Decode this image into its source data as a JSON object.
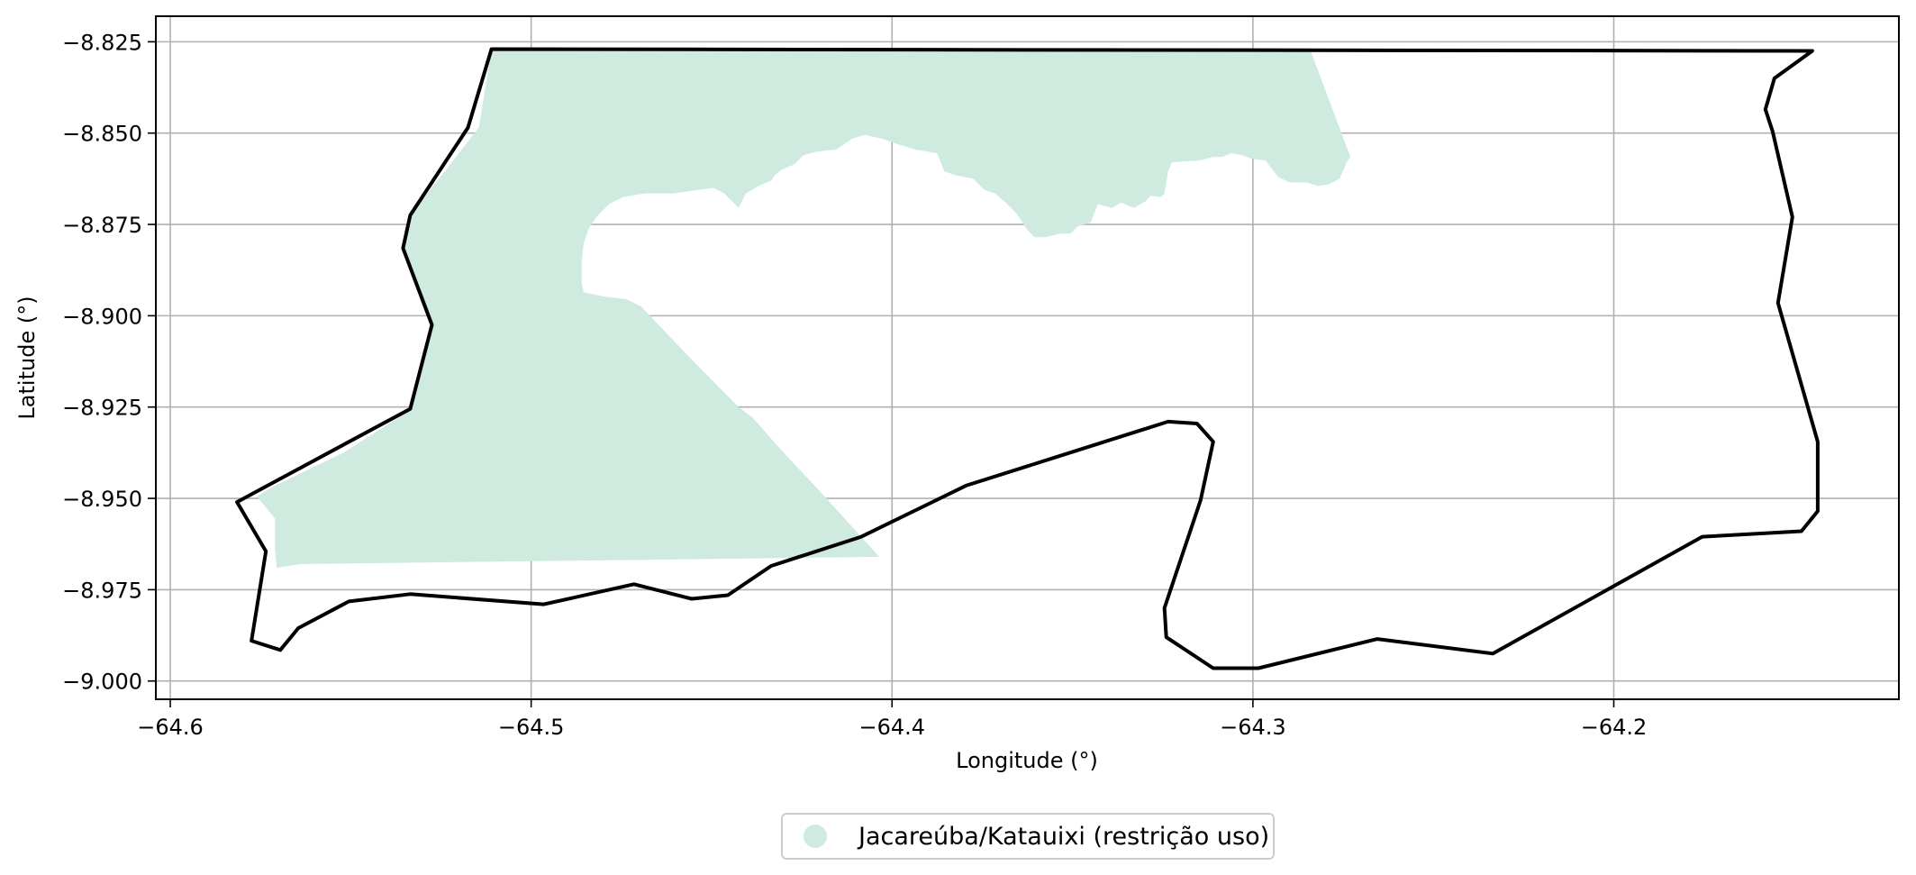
{
  "chart_data": {
    "type": "map",
    "xlabel": "Longitude (°)",
    "ylabel": "Latitude (°)",
    "xlim": [
      -64.604,
      -64.121
    ],
    "ylim": [
      -9.005,
      -8.818
    ],
    "grid": true,
    "x_ticks": [
      {
        "value": -64.6,
        "label": "−64.6"
      },
      {
        "value": -64.5,
        "label": "−64.5"
      },
      {
        "value": -64.4,
        "label": "−64.4"
      },
      {
        "value": -64.3,
        "label": "−64.3"
      },
      {
        "value": -64.2,
        "label": "−64.2"
      }
    ],
    "y_ticks": [
      {
        "value": -8.825,
        "label": "−8.825"
      },
      {
        "value": -8.85,
        "label": "−8.850"
      },
      {
        "value": -8.875,
        "label": "−8.875"
      },
      {
        "value": -8.9,
        "label": "−8.900"
      },
      {
        "value": -8.925,
        "label": "−8.925"
      },
      {
        "value": -8.95,
        "label": "−8.950"
      },
      {
        "value": -8.975,
        "label": "−8.975"
      },
      {
        "value": -9.0,
        "label": "−9.000"
      }
    ],
    "legend": {
      "placement": "bottom-center",
      "entries": [
        {
          "label": "Jacareúba/Katauixi (restrição uso)",
          "color": "#cfebdf"
        }
      ]
    },
    "layers": [
      {
        "kind": "filled-area",
        "legend_label": "Jacareúba/Katauixi (restrição uso)",
        "color": "#cfebdf",
        "coordinates": [
          [
            -64.511,
            -8.827
          ],
          [
            -64.284,
            -8.8275
          ],
          [
            -64.273,
            -8.8565
          ],
          [
            -64.274,
            -8.858
          ],
          [
            -64.276,
            -8.8625
          ],
          [
            -64.279,
            -8.864
          ],
          [
            -64.282,
            -8.8645
          ],
          [
            -64.285,
            -8.8635
          ],
          [
            -64.29,
            -8.8635
          ],
          [
            -64.293,
            -8.862
          ],
          [
            -64.2965,
            -8.8575
          ],
          [
            -64.3005,
            -8.857
          ],
          [
            -64.303,
            -8.856
          ],
          [
            -64.306,
            -8.8555
          ],
          [
            -64.3085,
            -8.8565
          ],
          [
            -64.311,
            -8.8565
          ],
          [
            -64.315,
            -8.8575
          ],
          [
            -64.3225,
            -8.858
          ],
          [
            -64.3235,
            -8.8605
          ],
          [
            -64.3245,
            -8.8665
          ],
          [
            -64.3255,
            -8.8675
          ],
          [
            -64.3285,
            -8.8672
          ],
          [
            -64.3295,
            -8.8685
          ],
          [
            -64.333,
            -8.8705
          ],
          [
            -64.3365,
            -8.869
          ],
          [
            -64.339,
            -8.8705
          ],
          [
            -64.343,
            -8.8695
          ],
          [
            -64.345,
            -8.8745
          ],
          [
            -64.3485,
            -8.8755
          ],
          [
            -64.3505,
            -8.8775
          ],
          [
            -64.3535,
            -8.8775
          ],
          [
            -64.3575,
            -8.8785
          ],
          [
            -64.3605,
            -8.8785
          ],
          [
            -64.3625,
            -8.8765
          ],
          [
            -64.3655,
            -8.872
          ],
          [
            -64.3685,
            -8.869
          ],
          [
            -64.3715,
            -8.8665
          ],
          [
            -64.3745,
            -8.8655
          ],
          [
            -64.3775,
            -8.8625
          ],
          [
            -64.3825,
            -8.8615
          ],
          [
            -64.3855,
            -8.8605
          ],
          [
            -64.3875,
            -8.8555
          ],
          [
            -64.3935,
            -8.8545
          ],
          [
            -64.3985,
            -8.853
          ],
          [
            -64.403,
            -8.8515
          ],
          [
            -64.4075,
            -8.8505
          ],
          [
            -64.411,
            -8.8515
          ],
          [
            -64.4155,
            -8.8545
          ],
          [
            -64.4205,
            -8.855
          ],
          [
            -64.4245,
            -8.856
          ],
          [
            -64.427,
            -8.8585
          ],
          [
            -64.4305,
            -8.86
          ],
          [
            -64.4325,
            -8.8615
          ],
          [
            -64.4335,
            -8.863
          ],
          [
            -64.437,
            -8.8645
          ],
          [
            -64.4405,
            -8.8665
          ],
          [
            -64.4425,
            -8.8705
          ],
          [
            -64.4465,
            -8.8665
          ],
          [
            -64.4495,
            -8.865
          ],
          [
            -64.4555,
            -8.8658
          ],
          [
            -64.4605,
            -8.8665
          ],
          [
            -64.4685,
            -8.8665
          ],
          [
            -64.4745,
            -8.8675
          ],
          [
            -64.4785,
            -8.8695
          ],
          [
            -64.4815,
            -8.8725
          ],
          [
            -64.484,
            -8.876
          ],
          [
            -64.4855,
            -8.8805
          ],
          [
            -64.486,
            -8.8855
          ],
          [
            -64.486,
            -8.891
          ],
          [
            -64.4855,
            -8.8935
          ],
          [
            -64.4835,
            -8.894
          ],
          [
            -64.4795,
            -8.8948
          ],
          [
            -64.4735,
            -8.8955
          ],
          [
            -64.4695,
            -8.8975
          ],
          [
            -64.4555,
            -8.912
          ],
          [
            -64.4425,
            -8.925
          ],
          [
            -64.4385,
            -8.928
          ],
          [
            -64.4305,
            -8.937
          ],
          [
            -64.4205,
            -8.9475
          ],
          [
            -64.4035,
            -8.966
          ],
          [
            -64.3945,
            -8.9735
          ],
          [
            -64.388,
            -8.9695
          ],
          [
            -64.564,
            -8.968
          ],
          [
            -64.5705,
            -8.969
          ],
          [
            -64.571,
            -8.964
          ],
          [
            -64.571,
            -8.9555
          ],
          [
            -64.576,
            -8.9495
          ],
          [
            -64.572,
            -8.947
          ],
          [
            -64.552,
            -8.9375
          ],
          [
            -64.533,
            -8.9255
          ],
          [
            -64.5275,
            -8.9025
          ],
          [
            -64.5355,
            -8.8815
          ],
          [
            -64.5335,
            -8.8725
          ],
          [
            -64.5145,
            -8.8485
          ]
        ]
      },
      {
        "kind": "outline",
        "color": "#000000",
        "coordinates": [
          [
            -64.511,
            -8.827
          ],
          [
            -64.145,
            -8.8275
          ],
          [
            -64.1555,
            -8.835
          ],
          [
            -64.158,
            -8.8435
          ],
          [
            -64.156,
            -8.8495
          ],
          [
            -64.1505,
            -8.873
          ],
          [
            -64.1545,
            -8.8965
          ],
          [
            -64.1435,
            -8.9345
          ],
          [
            -64.1435,
            -8.9535
          ],
          [
            -64.148,
            -8.959
          ],
          [
            -64.1755,
            -8.9605
          ],
          [
            -64.2335,
            -8.9925
          ],
          [
            -64.2655,
            -8.9885
          ],
          [
            -64.2985,
            -8.9965
          ],
          [
            -64.311,
            -8.9965
          ],
          [
            -64.324,
            -8.988
          ],
          [
            -64.3245,
            -8.98
          ],
          [
            -64.3145,
            -8.9505
          ],
          [
            -64.311,
            -8.9345
          ],
          [
            -64.3155,
            -8.9295
          ],
          [
            -64.3235,
            -8.929
          ],
          [
            -64.3795,
            -8.9465
          ],
          [
            -64.4085,
            -8.9605
          ],
          [
            -64.4335,
            -8.9685
          ],
          [
            -64.4455,
            -8.9765
          ],
          [
            -64.4555,
            -8.9775
          ],
          [
            -64.4715,
            -8.9735
          ],
          [
            -64.4965,
            -8.979
          ],
          [
            -64.5335,
            -8.9762
          ],
          [
            -64.5505,
            -8.9782
          ],
          [
            -64.5645,
            -8.9855
          ],
          [
            -64.5695,
            -8.9915
          ],
          [
            -64.5775,
            -8.989
          ],
          [
            -64.5735,
            -8.9645
          ],
          [
            -64.5815,
            -8.951
          ],
          [
            -64.5335,
            -8.9255
          ],
          [
            -64.5275,
            -8.9025
          ],
          [
            -64.5355,
            -8.8815
          ],
          [
            -64.5335,
            -8.8725
          ],
          [
            -64.5175,
            -8.8485
          ]
        ]
      }
    ]
  }
}
